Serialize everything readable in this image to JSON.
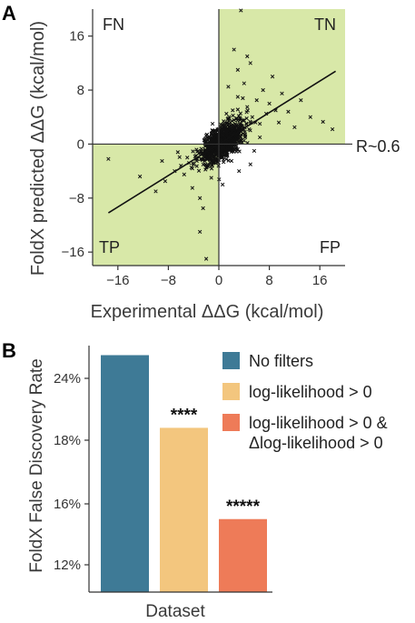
{
  "panels": [
    {
      "letter": "A",
      "quadrant_labels": {
        "top_left": "FN",
        "top_right": "TN",
        "bottom_left": "TP",
        "bottom_right": "FP"
      },
      "annotation": "R~0.6"
    },
    {
      "letter": "B"
    }
  ],
  "colors": {
    "quadrant_fill": "#d8e8a8",
    "no_filters": "#3e7a96",
    "loglik": "#f3c67e",
    "delta_loglik": "#ee7b58"
  },
  "chart_data": [
    {
      "type": "scatter",
      "title": "",
      "xlabel": "Experimental ΔΔG (kcal/mol)",
      "ylabel": "FoldX predicted ΔΔG (kcal/mol)",
      "xlim": [
        -20,
        20
      ],
      "ylim": [
        -18,
        20
      ],
      "x_ticks": [
        -16,
        -8,
        0,
        8,
        16
      ],
      "y_ticks": [
        16,
        8,
        0,
        -8,
        -16
      ],
      "x_tick_labels": [
        "−16",
        "−8",
        "0",
        "8",
        "16"
      ],
      "y_tick_labels": [
        "16",
        "8",
        "0",
        "−8",
        "−16"
      ],
      "grid": false,
      "marker": "x",
      "fit_line": {
        "x": [
          -17.5,
          18.5
        ],
        "y": [
          -10.2,
          10.8
        ]
      },
      "shaded_quadrants": [
        "x<0,y<0",
        "x>0,y>0"
      ],
      "sample_points": [
        [
          -17.5,
          -2.2
        ],
        [
          -12.5,
          -4.8
        ],
        [
          -10,
          -7
        ],
        [
          -8.5,
          -5.5
        ],
        [
          -7,
          -4
        ],
        [
          -6,
          -3.2
        ],
        [
          -5.5,
          -4.5
        ],
        [
          -5,
          -2
        ],
        [
          -4.2,
          -6.5
        ],
        [
          -4,
          -3
        ],
        [
          -3.5,
          -2.5
        ],
        [
          -3,
          -8
        ],
        [
          -3,
          -13
        ],
        [
          -2.5,
          -1.5
        ],
        [
          -2,
          -3.5
        ],
        [
          -2,
          -17
        ],
        [
          -1.8,
          -0.5
        ],
        [
          -1.5,
          -2
        ],
        [
          -1.2,
          -5
        ],
        [
          -1,
          -1
        ],
        [
          -0.8,
          0.5
        ],
        [
          -0.5,
          -2.5
        ],
        [
          -0.3,
          1.2
        ],
        [
          0,
          0
        ],
        [
          0.3,
          -0.8
        ],
        [
          0.5,
          1.8
        ],
        [
          0.8,
          0.2
        ],
        [
          1,
          2.5
        ],
        [
          1.2,
          -1.5
        ],
        [
          1.5,
          1
        ],
        [
          1.8,
          3.2
        ],
        [
          2,
          -2.5
        ],
        [
          2.2,
          5
        ],
        [
          2.5,
          0.6
        ],
        [
          2.8,
          2
        ],
        [
          3,
          7
        ],
        [
          3.2,
          -4
        ],
        [
          3.5,
          19.8
        ],
        [
          3.8,
          3.5
        ],
        [
          4,
          9
        ],
        [
          4.2,
          1.2
        ],
        [
          4.5,
          5.5
        ],
        [
          4.8,
          2.2
        ],
        [
          5,
          12
        ],
        [
          5.3,
          4
        ],
        [
          5.6,
          -1
        ],
        [
          6,
          6.5
        ],
        [
          6.5,
          3
        ],
        [
          7,
          8
        ],
        [
          7.5,
          4.5
        ],
        [
          8,
          6
        ],
        [
          8.5,
          10
        ],
        [
          9,
          5
        ],
        [
          9.5,
          3.2
        ],
        [
          10,
          7.5
        ],
        [
          11,
          4.8
        ],
        [
          12,
          2.5
        ],
        [
          13,
          6.5
        ],
        [
          14.5,
          4
        ],
        [
          16.5,
          3.3
        ],
        [
          18,
          2.2
        ],
        [
          4.5,
          13
        ],
        [
          3,
          11
        ],
        [
          2.4,
          14
        ],
        [
          1.5,
          8.5
        ],
        [
          -1,
          3
        ],
        [
          0.6,
          -6
        ],
        [
          -2.5,
          -9.5
        ],
        [
          5,
          -3
        ],
        [
          6.5,
          1
        ],
        [
          -6.5,
          -1.2
        ],
        [
          -9,
          -2.5
        ],
        [
          1.2,
          4.5
        ],
        [
          2.8,
          -0.8
        ],
        [
          3.8,
          6.8
        ]
      ]
    },
    {
      "type": "bar",
      "title": "",
      "xlabel": "Dataset",
      "ylabel": "FoldX False Discovery Rate",
      "y_ticks": [
        12,
        16,
        18,
        24
      ],
      "y_tick_labels": [
        "12%",
        "16%",
        "18%",
        "24%"
      ],
      "categories": [
        "No filters",
        "log-likelihood > 0",
        "log-likelihood > 0 & Δlog-likelihood > 0"
      ],
      "values": [
        25.5,
        19.2,
        15.0
      ],
      "significance": [
        "",
        "****",
        "*****"
      ],
      "legend": {
        "position": "right",
        "entries": [
          {
            "label": "No filters",
            "color_key": "no_filters"
          },
          {
            "label": "log-likelihood > 0",
            "color_key": "loglik"
          },
          {
            "label_lines": [
              "log-likelihood > 0 &",
              "Δlog-likelihood > 0"
            ],
            "color_key": "delta_loglik"
          }
        ]
      }
    }
  ]
}
